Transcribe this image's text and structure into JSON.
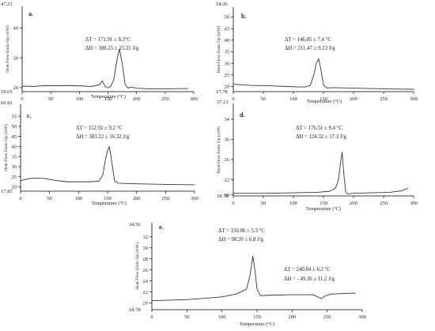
{
  "figure": {
    "panels": [
      {
        "id": "a",
        "letter": "a.",
        "annotations": [
          "ΔT = 171.91 ± 8.3°C",
          "ΔH = 188.25 ± 15.21 J/g"
        ]
      },
      {
        "id": "b",
        "letter": "b.",
        "annotations": [
          "ΔT = 146.85 ± 7.4 °C",
          "ΔH = 211.47 ± 9.23 J/g"
        ]
      },
      {
        "id": "c",
        "letter": "c.",
        "annotations": [
          "ΔT = 152.92 ± 9.2 °C",
          "ΔH = 383.22 ± 16.32 J/g"
        ]
      },
      {
        "id": "d",
        "letter": "d.",
        "annotations": [
          "ΔT = 176.51 ±  8.4 °C",
          "ΔH = 124.32 ± 17.3 J/g"
        ]
      },
      {
        "id": "e",
        "letter": "e.",
        "annotations": [
          "ΔT = 150.06 ± 5.3 °C",
          "ΔH = 98.26 ± 6.8 J/g",
          "ΔT = 240.84 ± 6.2 °C",
          "ΔH = - 49.36 ± 11.2 J/g"
        ]
      }
    ]
  },
  "chart_data": [
    {
      "type": "line",
      "panel": "a.",
      "xlabel": "Temperature (°C)",
      "ylabel": "Heat Flow Endo Up (mW)",
      "xlim": [
        0,
        300
      ],
      "ylim": [
        18.65,
        47.23
      ],
      "xticks": [
        "0",
        "50",
        "100",
        "150",
        "200",
        "250",
        "300"
      ],
      "yticks": [
        "20",
        "30",
        "40"
      ],
      "yextent_labels": [
        "47.23",
        "18.65"
      ],
      "series": [
        {
          "x": [
            0,
            20,
            40,
            60,
            80,
            100,
            120,
            135,
            140,
            145,
            150,
            155,
            160,
            165,
            170,
            175,
            180,
            185,
            190,
            200,
            220,
            250,
            290
          ],
          "y": [
            20.5,
            20.4,
            20.7,
            20.6,
            20.7,
            20.6,
            20.4,
            20.9,
            22.3,
            20.4,
            19.9,
            20.5,
            22.5,
            28.5,
            33,
            28,
            21,
            19.8,
            20.2,
            19.8,
            19.6,
            19.6,
            19.7
          ]
        }
      ],
      "annotations": [
        "ΔT = 171.91 ± 8.3°C",
        "ΔH = 188.25 ± 15.21 J/g"
      ]
    },
    {
      "type": "line",
      "panel": "b.",
      "xlabel": "Temperature (°C)",
      "ylabel": "Heat Flow Endo Up (mW)",
      "xlim": [
        0,
        300
      ],
      "ylim": [
        17.78,
        54.26
      ],
      "xticks": [
        "0",
        "50",
        "100",
        "150",
        "200",
        "250",
        "300"
      ],
      "yticks": [
        "20",
        "25",
        "30",
        "35",
        "40",
        "45",
        "50"
      ],
      "yextent_labels": [
        "54.26",
        "17.78"
      ],
      "series": [
        {
          "x": [
            0,
            30,
            60,
            90,
            110,
            120,
            128,
            134,
            138,
            142,
            146,
            150,
            156,
            165,
            200,
            250,
            300
          ],
          "y": [
            21,
            20.5,
            20.3,
            20,
            19.8,
            19.8,
            20.5,
            25,
            30,
            32,
            27,
            20.5,
            19.3,
            19.5,
            19.3,
            19,
            18.8
          ]
        }
      ],
      "annotations": [
        "ΔT = 146.85 ± 7.4 °C",
        "ΔH = 211.47 ± 9.23 J/g"
      ]
    },
    {
      "type": "line",
      "panel": "c.",
      "xlabel": "Temperature (°C)",
      "ylabel": "Heat Flow Endo Up (mW)",
      "xlim": [
        0,
        300
      ],
      "ylim": [
        17.85,
        60.92
      ],
      "xticks": [
        "0",
        "50",
        "100",
        "150",
        "200",
        "250",
        "300"
      ],
      "yticks": [
        "20",
        "25",
        "30",
        "35",
        "40",
        "45",
        "50",
        "55"
      ],
      "yextent_labels": [
        "60.92",
        "17.85"
      ],
      "series": [
        {
          "x": [
            0,
            10,
            20,
            40,
            60,
            80,
            100,
            120,
            135,
            142,
            146,
            150,
            153,
            157,
            162,
            168,
            200,
            250,
            300
          ],
          "y": [
            23,
            23.8,
            24.3,
            24.2,
            23.2,
            22.5,
            22.5,
            22.5,
            22.8,
            26,
            33,
            38,
            40,
            33,
            23,
            21.8,
            21.5,
            21.2,
            21
          ]
        }
      ],
      "annotations": [
        "ΔT = 152.92 ± 9.2 °C",
        "ΔH = 383.22 ± 16.32 J/g"
      ]
    },
    {
      "type": "line",
      "panel": "d.",
      "xlabel": "Temperature (°C)",
      "ylabel": "Heat Flow Endo Up (mW)",
      "xlim": [
        0,
        300
      ],
      "ylim": [
        18.78,
        37.13
      ],
      "xticks": [
        "0",
        "50",
        "100",
        "150",
        "200",
        "250",
        "300"
      ],
      "yticks": [
        "19",
        "22",
        "26",
        "30",
        "34"
      ],
      "yextent_labels": [
        "37.13",
        "18.78"
      ],
      "series": [
        {
          "x": [
            0,
            50,
            100,
            140,
            160,
            170,
            175,
            178,
            181,
            184,
            187,
            190,
            200,
            230,
            260,
            280,
            290
          ],
          "y": [
            19.3,
            19.3,
            19.4,
            19.5,
            19.7,
            20.3,
            22,
            25,
            27.5,
            23,
            19.5,
            19.2,
            19.3,
            19.4,
            19.5,
            19.8,
            20.3
          ]
        }
      ],
      "annotations": [
        "ΔT = 176.51 ±  8.4 °C",
        "ΔH = 124.32 ± 17.3 J/g"
      ]
    },
    {
      "type": "line",
      "panel": "e.",
      "xlabel": "Temperature (°C)",
      "ylabel": "Heat Flow Endo Up (mW)",
      "xlim": [
        0,
        300
      ],
      "ylim": [
        18.78,
        34.56
      ],
      "xticks": [
        "0",
        "50",
        "100",
        "150",
        "200",
        "250",
        "300"
      ],
      "yticks": [
        "20",
        "22",
        "24",
        "26",
        "28",
        "30",
        "32"
      ],
      "yextent_labels": [
        "34.56",
        "18.78"
      ],
      "series": [
        {
          "x": [
            0,
            50,
            100,
            120,
            135,
            140,
            144,
            147,
            150,
            155,
            165,
            200,
            230,
            238,
            242,
            246,
            255,
            270,
            290
          ],
          "y": [
            20.4,
            20.6,
            21.1,
            21.6,
            22.5,
            25,
            28.5,
            26,
            22.5,
            21.3,
            21.4,
            21.5,
            21.5,
            21,
            20.8,
            21.2,
            21.6,
            21.7,
            21.8
          ]
        }
      ],
      "annotations": [
        "ΔT = 150.06 ± 5.3 °C",
        "ΔH = 98.26 ± 6.8 J/g",
        "ΔT = 240.84 ± 6.2 °C",
        "ΔH = - 49.36 ± 11.2 J/g"
      ]
    }
  ]
}
